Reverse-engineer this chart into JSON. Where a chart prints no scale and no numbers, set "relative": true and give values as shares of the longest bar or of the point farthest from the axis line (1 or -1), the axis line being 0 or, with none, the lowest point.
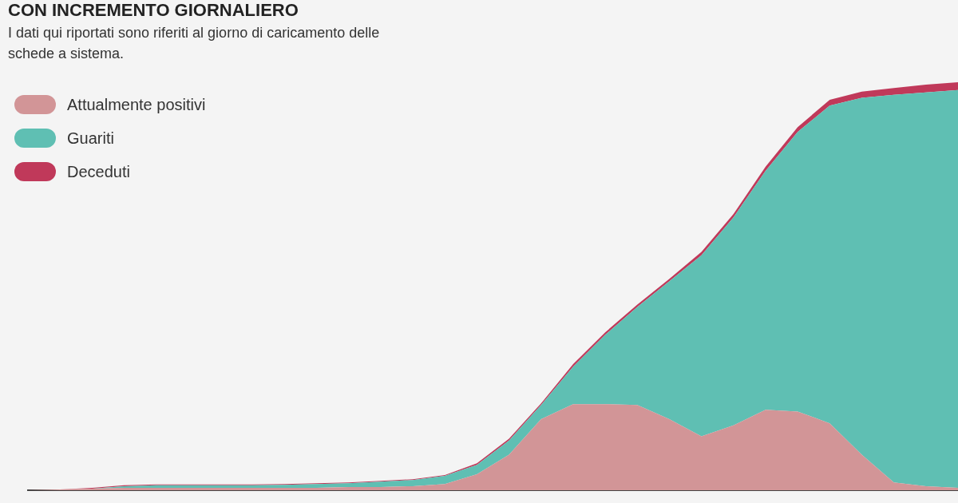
{
  "chart_data": {
    "type": "area",
    "title": "CON INCREMENTO GIORNALIERO",
    "subtitle": "I dati qui riportati sono riferiti al giorno di caricamento delle schede a sistema.",
    "relative": true,
    "stacked": true,
    "legend": "top left",
    "categories": [
      null,
      null,
      null,
      null,
      null,
      null,
      null,
      null,
      null,
      null,
      null,
      null,
      null,
      null,
      null,
      null,
      null,
      null,
      null,
      null,
      null,
      null,
      null,
      null,
      null,
      null,
      null,
      null,
      null,
      null
    ],
    "series": [
      {
        "name": "Attualmente positivi",
        "color": "#d29597",
        "values": [
          0,
          0.002,
          0.004,
          0.006,
          0.006,
          0.006,
          0.006,
          0.006,
          0.006,
          0.006,
          0.008,
          0.008,
          0.01,
          0.015,
          0.039,
          0.087,
          0.174,
          0.211,
          0.211,
          0.209,
          0.174,
          0.132,
          0.159,
          0.197,
          0.193,
          0.164,
          0.087,
          0.019,
          0.01,
          0.006
        ]
      },
      {
        "name": "Guariti",
        "color": "#5fbfb3",
        "values": [
          0,
          0,
          0,
          0.004,
          0.006,
          0.006,
          0.006,
          0.006,
          0.007,
          0.009,
          0.009,
          0.013,
          0.015,
          0.02,
          0.023,
          0.035,
          0.035,
          0.092,
          0.17,
          0.24,
          0.338,
          0.444,
          0.51,
          0.586,
          0.685,
          0.779,
          0.875,
          0.95,
          0.965,
          0.975
        ]
      },
      {
        "name": "Deceduti",
        "color": "#c0395a",
        "values": [
          0,
          0,
          0.002,
          0.002,
          0.002,
          0.002,
          0.002,
          0.002,
          0.002,
          0.002,
          0.002,
          0.002,
          0.002,
          0.002,
          0.004,
          0.004,
          0.004,
          0.006,
          0.006,
          0.006,
          0.006,
          0.008,
          0.008,
          0.01,
          0.012,
          0.014,
          0.015,
          0.017,
          0.019,
          0.019
        ]
      }
    ]
  }
}
